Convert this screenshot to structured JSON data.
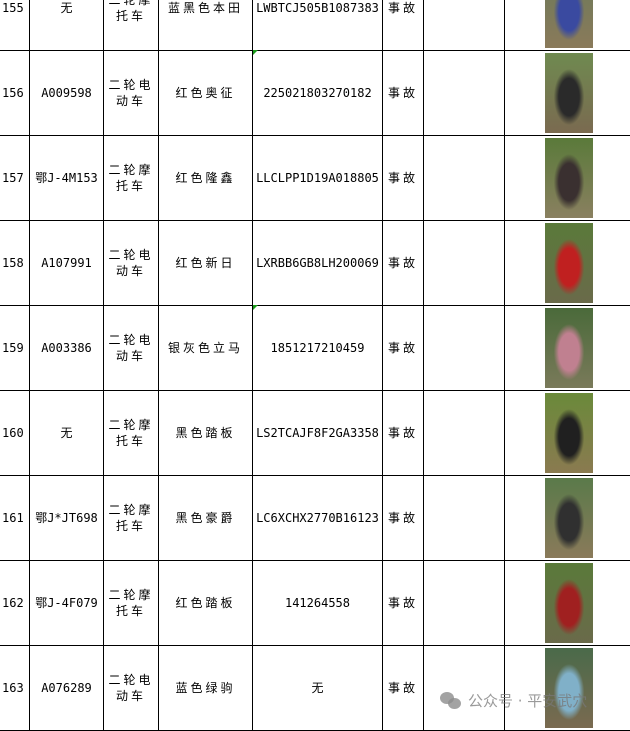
{
  "rows": [
    {
      "no": "155",
      "plate": "无",
      "type": "二轮摩托车",
      "color_brand": "蓝黑色本田",
      "vin": "LWBTCJ505B1087383",
      "reason": "事故",
      "photo_colors": [
        "#6a7a5a",
        "#3a4aa0",
        "#8a7a5a"
      ]
    },
    {
      "no": "156",
      "plate": "A009598",
      "type": "二轮电动车",
      "color_brand": "红色奥征",
      "vin": "225021803270182",
      "reason": "事故",
      "photo_colors": [
        "#6f8a50",
        "#2a2a2a",
        "#7a6a50"
      ]
    },
    {
      "no": "157",
      "plate": "鄂J-4M153",
      "type": "二轮摩托车",
      "color_brand": "红色隆鑫",
      "vin": "LLCLPP1D19A018805",
      "reason": "事故",
      "photo_colors": [
        "#5a7a3a",
        "#3a3030",
        "#8a8060"
      ]
    },
    {
      "no": "158",
      "plate": "A107991",
      "type": "二轮电动车",
      "color_brand": "红色新日",
      "vin": "LXRBB6GB8LH200069",
      "reason": "事故",
      "photo_colors": [
        "#5a7a3a",
        "#c02020",
        "#6a6a4a"
      ]
    },
    {
      "no": "159",
      "plate": "A003386",
      "type": "二轮电动车",
      "color_brand": "银灰色立马",
      "vin": "1851217210459",
      "reason": "事故",
      "photo_colors": [
        "#4a6a3a",
        "#c08090",
        "#7a7a5a"
      ]
    },
    {
      "no": "160",
      "plate": "无",
      "type": "二轮摩托车",
      "color_brand": "黑色踏板",
      "vin": "LS2TCAJF8F2GA3358",
      "reason": "事故",
      "photo_colors": [
        "#6a8a3a",
        "#202020",
        "#8a7a50"
      ]
    },
    {
      "no": "161",
      "plate": "鄂J*JT698",
      "type": "二轮摩托车",
      "color_brand": "黑色豪爵",
      "vin": "LC6XCHX2770B16123",
      "reason": "事故",
      "photo_colors": [
        "#5a7a4a",
        "#303030",
        "#8a7a5a"
      ]
    },
    {
      "no": "162",
      "plate": "鄂J-4F079",
      "type": "二轮摩托车",
      "color_brand": "红色踏板",
      "vin": "141264558",
      "reason": "事故",
      "photo_colors": [
        "#5a7a3a",
        "#a02020",
        "#6a6a4a"
      ]
    },
    {
      "no": "163",
      "plate": "A076289",
      "type": "二轮电动车",
      "color_brand": "蓝色绿驹",
      "vin": "无",
      "reason": "事故",
      "photo_colors": [
        "#4a6a4a",
        "#80b0c8",
        "#7a6a50"
      ]
    }
  ],
  "watermark": {
    "text": "公众号 · 平安武穴"
  }
}
